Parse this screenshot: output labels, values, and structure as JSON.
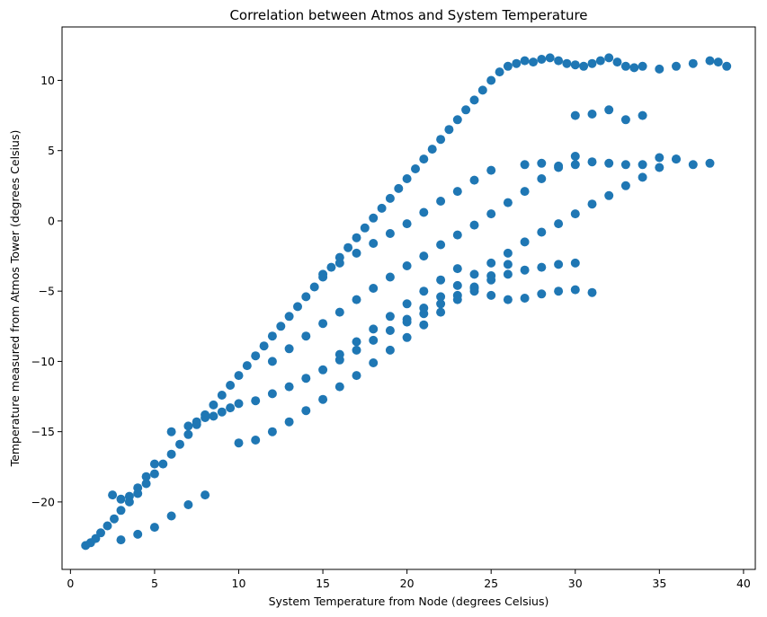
{
  "chart_data": {
    "type": "scatter",
    "title": "Correlation between Atmos and System Temperature",
    "xlabel": "System Temperature from Node (degrees Celsius)",
    "ylabel": "Temperature measured from Atmos Tower (degrees Celsius)",
    "xlim": [
      -0.5,
      40.7
    ],
    "ylim": [
      -24.8,
      13.8
    ],
    "xticks": [
      0,
      5,
      10,
      15,
      20,
      25,
      30,
      35,
      40
    ],
    "xtick_labels": [
      "0",
      "5",
      "10",
      "15",
      "20",
      "25",
      "30",
      "35",
      "40"
    ],
    "yticks": [
      -20,
      -15,
      -10,
      -5,
      0,
      5,
      10
    ],
    "ytick_labels": [
      "−20",
      "−15",
      "−10",
      "−5",
      "0",
      "5",
      "10"
    ],
    "grid": false,
    "marker_color": "#1f77b4",
    "series": [
      {
        "x": [
          0.9,
          1.2,
          1.5,
          1.8,
          2.2,
          2.6,
          3.0,
          3.5,
          4.0,
          4.5,
          5.0,
          5.5,
          6.0,
          6.5,
          7.0,
          7.5,
          8.0,
          8.5,
          9.0,
          9.5,
          10.0,
          10.5,
          11.0,
          11.5,
          12.0,
          12.5,
          13.0,
          13.5,
          14.0,
          14.5,
          15.0,
          15.5,
          16.0,
          16.5,
          17.0,
          17.5,
          18.0,
          18.5,
          19.0,
          19.5,
          20.0,
          20.5,
          21.0,
          21.5,
          22.0,
          22.5,
          23.0,
          23.5,
          24.0,
          24.5,
          25.0,
          25.5,
          26.0,
          26.5,
          27.0,
          27.5,
          28.0,
          28.5,
          29.0,
          29.5,
          30.0,
          30.5,
          31.0,
          31.5,
          32.0,
          32.5,
          33.0,
          33.5,
          34.0,
          35.0,
          36.0,
          37.0,
          38.0,
          38.5,
          39.0,
          2.5,
          3.0,
          3.5,
          4.0,
          4.5,
          5.0,
          3.0,
          4.0,
          5.0,
          6.0,
          7.0,
          8.0,
          6.0,
          7.0,
          7.5,
          8.0,
          8.5,
          9.0,
          9.5,
          10.0,
          11.0,
          12.0,
          13.0,
          14.0,
          15.0,
          16.0,
          17.0,
          18.0,
          19.0,
          20.0,
          21.0,
          22.0,
          23.0,
          24.0,
          25.0,
          26.0,
          27.0,
          28.0,
          29.0,
          30.0,
          24.0,
          25.0,
          26.0,
          27.0,
          28.0,
          29.0,
          30.0,
          31.0,
          20.0,
          21.0,
          22.0,
          23.0,
          24.0,
          25.0,
          26.0,
          27.0,
          28.0,
          29.0,
          30.0,
          31.0,
          32.0,
          33.0,
          34.0,
          35.0,
          36.0,
          27.0,
          28.0,
          29.0,
          30.0,
          31.0,
          32.0,
          33.0,
          34.0,
          35.0,
          36.0,
          37.0,
          38.0,
          30.0,
          31.0,
          32.0,
          33.0,
          34.0,
          10.0,
          11.0,
          12.0,
          13.0,
          14.0,
          15.0,
          16.0,
          17.0,
          18.0,
          19.0,
          20.0,
          21.0,
          22.0,
          23.0,
          24.0,
          25.0,
          26.0,
          12.0,
          13.0,
          14.0,
          15.0,
          16.0,
          17.0,
          18.0,
          19.0,
          20.0,
          21.0,
          22.0,
          23.0,
          24.0,
          25.0,
          26.0,
          27.0,
          28.0,
          29.0,
          30.0,
          15.0,
          16.0,
          17.0,
          18.0,
          19.0,
          20.0,
          21.0,
          22.0,
          23.0,
          24.0,
          25.0,
          16.0,
          17.0,
          18.0,
          19.0,
          20.0,
          21.0,
          22.0,
          23.0
        ],
        "y": [
          -23.1,
          -22.9,
          -22.6,
          -22.2,
          -21.7,
          -21.2,
          -20.6,
          -20.0,
          -19.4,
          -18.7,
          -18.0,
          -17.3,
          -16.6,
          -15.9,
          -15.2,
          -14.5,
          -13.8,
          -13.1,
          -12.4,
          -11.7,
          -11.0,
          -10.3,
          -9.6,
          -8.9,
          -8.2,
          -7.5,
          -6.8,
          -6.1,
          -5.4,
          -4.7,
          -4.0,
          -3.3,
          -2.6,
          -1.9,
          -1.2,
          -0.5,
          0.2,
          0.9,
          1.6,
          2.3,
          3.0,
          3.7,
          4.4,
          5.1,
          5.8,
          6.5,
          7.2,
          7.9,
          8.6,
          9.3,
          10.0,
          10.6,
          11.0,
          11.2,
          11.4,
          11.3,
          11.5,
          11.6,
          11.4,
          11.2,
          11.1,
          11.0,
          11.2,
          11.4,
          11.6,
          11.3,
          11.0,
          10.9,
          11.0,
          10.8,
          11.0,
          11.2,
          11.4,
          11.3,
          11.0,
          -19.5,
          -19.8,
          -19.6,
          -19.0,
          -18.2,
          -17.3,
          -22.7,
          -22.3,
          -21.8,
          -21.0,
          -20.2,
          -19.5,
          -15.0,
          -14.6,
          -14.3,
          -14.0,
          -13.9,
          -13.6,
          -13.3,
          -13.0,
          -12.8,
          -12.3,
          -11.8,
          -11.2,
          -10.6,
          -9.9,
          -9.2,
          -8.5,
          -7.8,
          -7.2,
          -6.6,
          -5.9,
          -5.3,
          -4.7,
          -4.2,
          -3.8,
          -3.5,
          -3.3,
          -3.1,
          -3.0,
          -5.0,
          -5.3,
          -5.6,
          -5.5,
          -5.2,
          -5.0,
          -4.9,
          -5.1,
          -7.0,
          -6.2,
          -5.4,
          -4.6,
          -3.8,
          -3.0,
          -2.3,
          -1.5,
          -0.8,
          -0.2,
          0.5,
          1.2,
          1.8,
          2.5,
          3.1,
          3.8,
          4.4,
          4.0,
          4.1,
          3.9,
          4.0,
          4.2,
          4.1,
          4.0,
          4.0,
          4.5,
          4.4,
          4.0,
          4.1,
          7.5,
          7.6,
          7.9,
          7.2,
          7.5,
          -15.8,
          -15.6,
          -15.0,
          -14.3,
          -13.5,
          -12.7,
          -11.8,
          -11.0,
          -10.1,
          -9.2,
          -8.3,
          -7.4,
          -6.5,
          -5.6,
          -4.8,
          -3.9,
          -3.1,
          -10.0,
          -9.1,
          -8.2,
          -7.3,
          -6.5,
          -5.6,
          -4.8,
          -4.0,
          -3.2,
          -2.5,
          -1.7,
          -1.0,
          -0.3,
          0.5,
          1.3,
          2.1,
          3.0,
          3.8,
          4.6,
          -3.8,
          -3.0,
          -2.3,
          -1.6,
          -0.9,
          -0.2,
          0.6,
          1.4,
          2.1,
          2.9,
          3.6,
          -9.5,
          -8.6,
          -7.7,
          -6.8,
          -5.9,
          -5.0,
          -4.2,
          -3.4
        ]
      }
    ]
  }
}
